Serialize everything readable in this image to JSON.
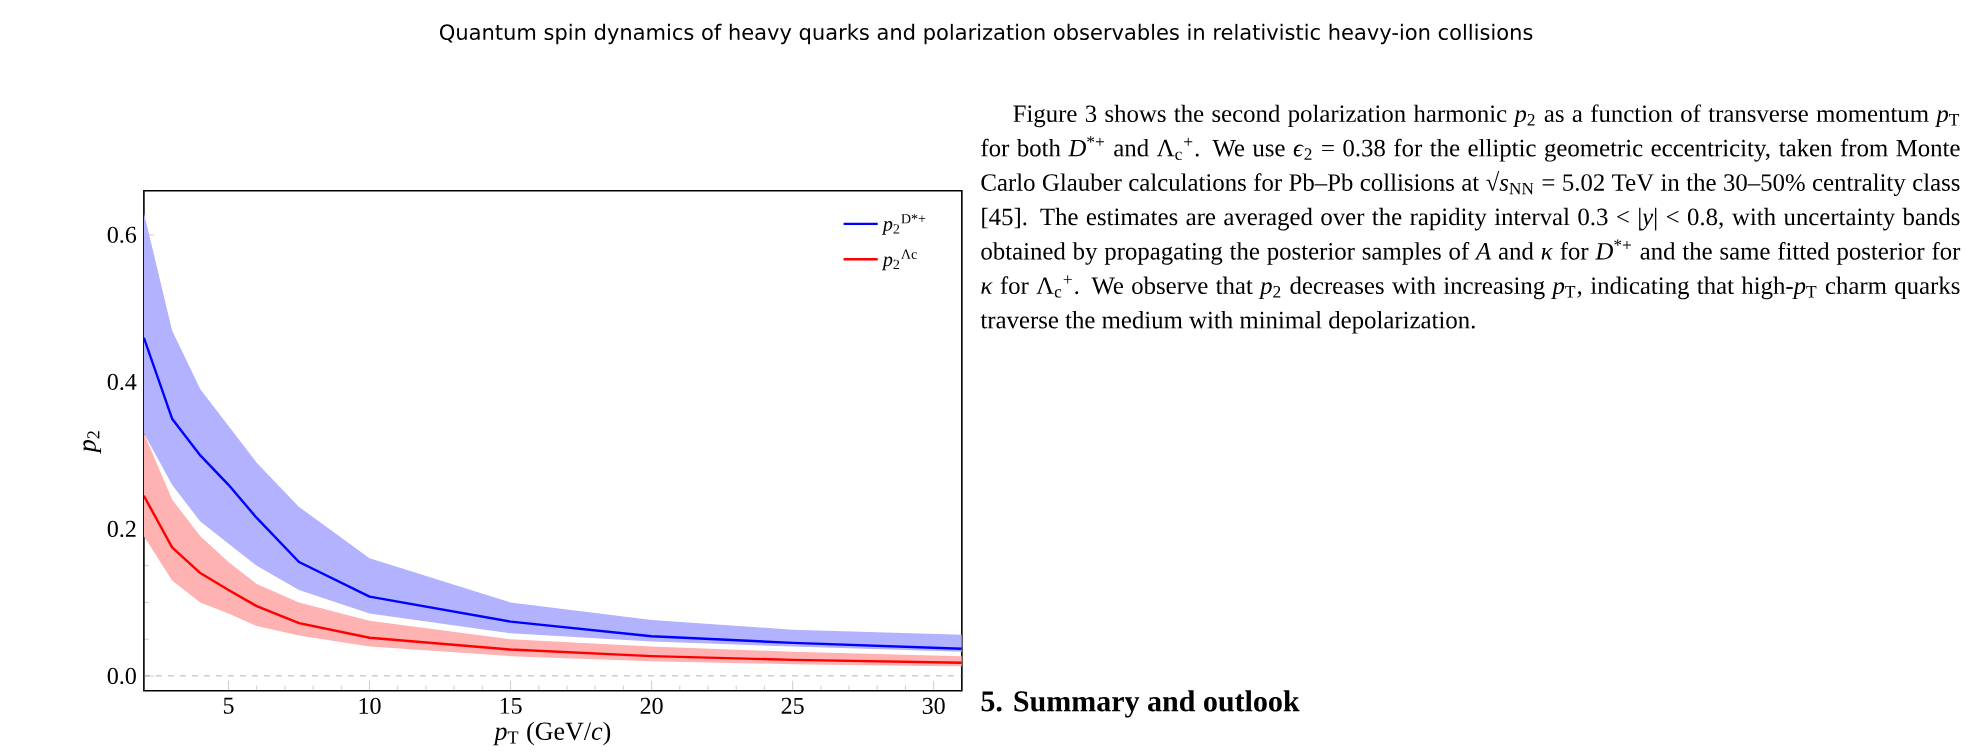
{
  "chart_data": {
    "type": "line",
    "title": "Quantum spin dynamics of heavy quarks and polarization observables in relativistic heavy-ion collisions",
    "xlabel": "*p*$_{T}$ (GeV/*c*)",
    "ylabel": "*p*$_{2}$",
    "x": [
      2,
      3,
      4,
      5,
      6,
      7.5,
      10,
      15,
      20,
      25,
      31
    ],
    "series": [
      {
        "name": "*p*$_{2}$$^{D*+}$",
        "color": "#0000ff",
        "values": [
          0.46,
          0.35,
          0.3,
          0.26,
          0.215,
          0.155,
          0.108,
          0.074,
          0.054,
          0.045,
          0.037
        ],
        "lower": [
          0.33,
          0.26,
          0.21,
          0.18,
          0.15,
          0.117,
          0.085,
          0.058,
          0.047,
          0.04,
          0.033
        ],
        "upper": [
          0.63,
          0.47,
          0.39,
          0.34,
          0.29,
          0.23,
          0.16,
          0.1,
          0.076,
          0.063,
          0.056
        ]
      },
      {
        "name": "*p*$_{2}$$^{Λc}$",
        "color": "#ff0000",
        "values": [
          0.245,
          0.175,
          0.14,
          0.117,
          0.095,
          0.072,
          0.052,
          0.036,
          0.027,
          0.022,
          0.018
        ],
        "lower": [
          0.19,
          0.13,
          0.1,
          0.085,
          0.068,
          0.055,
          0.04,
          0.027,
          0.02,
          0.016,
          0.013
        ],
        "upper": [
          0.33,
          0.24,
          0.19,
          0.155,
          0.125,
          0.1,
          0.075,
          0.05,
          0.04,
          0.033,
          0.027
        ]
      }
    ],
    "xlim": [
      2,
      31
    ],
    "ylim": [
      -0.02,
      0.66
    ],
    "xticks": [
      5,
      10,
      15,
      20,
      25,
      30
    ],
    "yticks": [
      {
        "value": 0,
        "label": "0.0"
      },
      {
        "value": 0.2,
        "label": "0.2"
      },
      {
        "value": 0.4,
        "label": "0.4"
      },
      {
        "value": 0.6,
        "label": "0.6"
      }
    ],
    "ref_lines": [
      {
        "axis": "y",
        "value": 0,
        "color": "#808080",
        "line_style": "dashed"
      }
    ],
    "legend": "top right",
    "grid": false,
    "marker": "none",
    "line_style": "solid",
    "annotations": [
      "Figure 3 shows the second polarization harmonic *p*$_{2}$ as a function of transverse momentum *p*$_{T}$ for both *D*$^{*+}$ and Λ$_{c}$$^{+}$. We use *ϵ*$_{2}$ = 0.38 for the elliptic geometric eccentricity, taken from Monte Carlo Glauber calculations for Pb–Pb collisions at √*s*$_{NN}$ = 5.02 TeV in the 30–50% centrality class [45]. The estimates are averaged over the rapidity interval 0.3 < |*y*| < 0.8, with uncertainty bands obtained by propagating the posterior samples of *A* and *κ* for *D*$^{*+}$ and the same fitted posterior for *κ* for Λ$_{c}$$^{+}$. We observe that *p*$_{2}$ decreases with increasing *p*$_{T}$, indicating that high-*p*$_{T}$ charm quarks traverse the medium with minimal depolarization.",
      "**5. Summary and outlook**"
    ]
  }
}
